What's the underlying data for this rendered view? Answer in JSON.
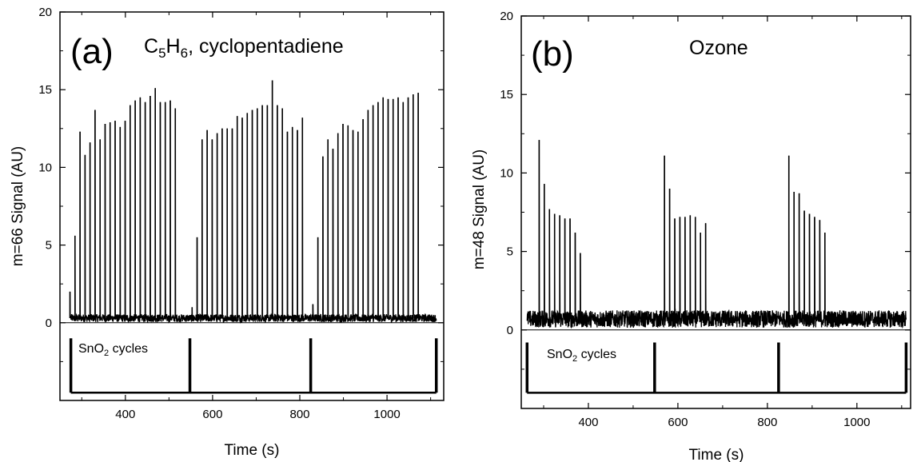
{
  "chart_data": [
    {
      "type": "line",
      "panel_label": "(a)",
      "title_parts": {
        "c": "C",
        "sub1": "5",
        "h": "H",
        "sub2": "6",
        "rest": ", cyclopentadiene"
      },
      "xlabel": "Time (s)",
      "ylabel": "m=66 Signal (AU)",
      "xlim": [
        250,
        1130
      ],
      "ylim": [
        -5,
        20
      ],
      "xticks": [
        400,
        600,
        800,
        1000
      ],
      "yticks": [
        0,
        5,
        10,
        15,
        20
      ],
      "baseline": 0.3,
      "noise": 0.25,
      "pulse_groups": [
        {
          "start": 273,
          "step": 11.5,
          "peaks": [
            2.0,
            5.6,
            12.3,
            10.8,
            11.6,
            13.7,
            11.8,
            12.8,
            12.9,
            13.0,
            12.6,
            13.0,
            14.0,
            14.3,
            14.5,
            14.2,
            14.6,
            15.1,
            14.2,
            14.2,
            14.3,
            13.8
          ]
        },
        {
          "start": 553,
          "step": 11.5,
          "peaks": [
            1.0,
            5.5,
            11.8,
            12.4,
            11.8,
            12.2,
            12.5,
            12.5,
            12.5,
            13.3,
            13.2,
            13.5,
            13.7,
            13.8,
            14.0,
            14.0,
            15.6,
            14.0,
            13.8,
            12.3,
            12.6,
            12.4,
            13.2
          ]
        },
        {
          "start": 830,
          "step": 11.5,
          "peaks": [
            1.2,
            5.5,
            10.7,
            11.8,
            11.2,
            12.2,
            12.8,
            12.7,
            12.4,
            12.3,
            13.1,
            13.7,
            14.0,
            14.2,
            14.5,
            14.4,
            14.4,
            14.5,
            14.2,
            14.5,
            14.7,
            14.8
          ]
        }
      ],
      "cycles_label": {
        "pre": "SnO",
        "sub": "2",
        "post": " cycles"
      },
      "cycle_bar": {
        "top": -1.0,
        "bottom": -4.5,
        "x_start": 275,
        "x_end": 1113,
        "markers": [
          275,
          548,
          825,
          1113
        ]
      }
    },
    {
      "type": "line",
      "panel_label": "(b)",
      "title": "Ozone",
      "xlabel": "Time (s)",
      "ylabel": "m=48 Signal (AU)",
      "xlim": [
        250,
        1120
      ],
      "ylim": [
        -5,
        20
      ],
      "xticks": [
        400,
        600,
        800,
        1000
      ],
      "yticks": [
        0,
        5,
        10,
        15,
        20
      ],
      "baseline": 0.7,
      "noise": 0.55,
      "pulse_groups": [
        {
          "start": 290,
          "step": 11.5,
          "peaks": [
            12.1,
            9.3,
            7.7,
            7.4,
            7.3,
            7.1,
            7.1,
            6.2,
            4.9
          ]
        },
        {
          "start": 570,
          "step": 11.5,
          "peaks": [
            11.1,
            9.0,
            7.1,
            7.2,
            7.2,
            7.3,
            7.2,
            6.2,
            6.8
          ]
        },
        {
          "start": 848,
          "step": 11.5,
          "peaks": [
            11.1,
            8.8,
            8.7,
            7.6,
            7.4,
            7.2,
            7.0,
            6.2
          ]
        }
      ],
      "cycles_label": {
        "pre": "SnO",
        "sub": "2",
        "post": " cycles"
      },
      "cycle_bar": {
        "top": -0.8,
        "bottom": -4.0,
        "x_start": 263,
        "x_end": 1110,
        "markers": [
          263,
          548,
          825,
          1110
        ]
      }
    }
  ]
}
